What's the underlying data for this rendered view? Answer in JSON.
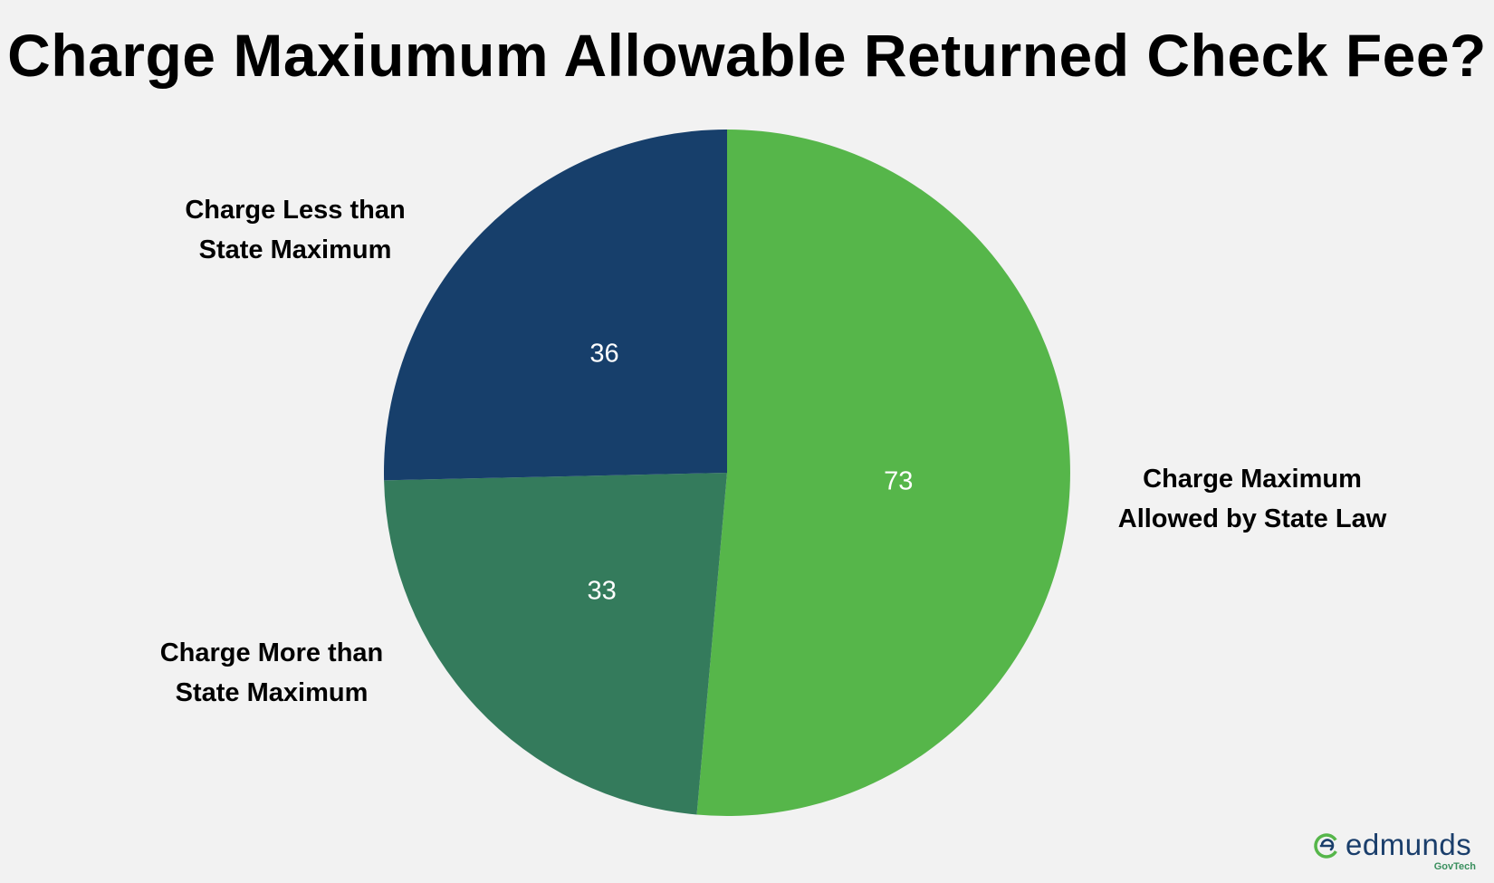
{
  "chart_data": {
    "type": "pie",
    "title": "Charge Maxiumum Allowable Returned Check Fee?",
    "start_angle_deg": 0,
    "direction": "clockwise",
    "slices": [
      {
        "label_lines": [
          "Charge Maximum",
          "Allowed by State Law"
        ],
        "value": 73,
        "color": "#56b64a"
      },
      {
        "label_lines": [
          "Charge More than",
          "State Maximum"
        ],
        "value": 33,
        "color": "#347b5c"
      },
      {
        "label_lines": [
          "Charge Less than",
          "State Maximum"
        ],
        "value": 36,
        "color": "#173f6b"
      }
    ],
    "data_labels": "inside",
    "category_labels": "outside"
  },
  "logo": {
    "name": "edmunds",
    "sub": "GovTech",
    "colors": {
      "navy": "#1a3e6b",
      "green": "#56b64a"
    }
  }
}
